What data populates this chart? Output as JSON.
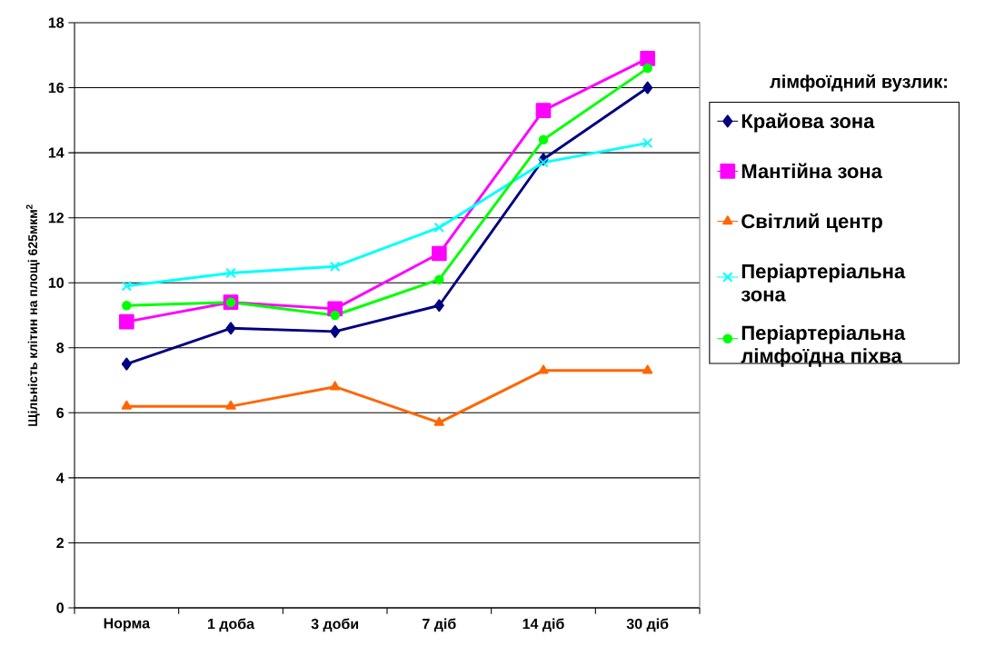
{
  "chart_data": {
    "type": "line",
    "ylabel": "Щільність клітин на площі 625мкм$^{2}$",
    "legend_title": "лімфоїдний вузлик:",
    "categories": [
      "Норма",
      "1 доба",
      "3 доби",
      "7 діб",
      "14 діб",
      "30 діб"
    ],
    "series": [
      {
        "name": "Крайова зона",
        "color": "#000080",
        "marker": "diamond",
        "values": [
          7.5,
          8.6,
          8.5,
          9.3,
          13.8,
          16.0
        ]
      },
      {
        "name": "Мантійна зона",
        "color": "#ff00ff",
        "marker": "square",
        "values": [
          8.8,
          9.4,
          9.2,
          10.9,
          15.3,
          16.9
        ]
      },
      {
        "name": "Світлий центр",
        "color": "#ff6600",
        "marker": "triangle",
        "values": [
          6.2,
          6.2,
          6.8,
          5.7,
          7.3,
          7.3
        ]
      },
      {
        "name": "Періартеріальна зона",
        "color": "#00ffff",
        "marker": "cross",
        "values": [
          9.9,
          10.3,
          10.5,
          11.7,
          13.7,
          14.3
        ]
      },
      {
        "name": "Періартеріальна лімфоїдна піхва",
        "color": "#00ff00",
        "marker": "circle",
        "values": [
          9.3,
          9.4,
          9.0,
          10.1,
          14.4,
          16.6
        ]
      }
    ],
    "ylim": [
      0,
      18
    ],
    "yticks": [
      0,
      2,
      4,
      6,
      8,
      10,
      12,
      14,
      16,
      18
    ],
    "grid": "y",
    "legend": "right",
    "line_style": "solid"
  }
}
